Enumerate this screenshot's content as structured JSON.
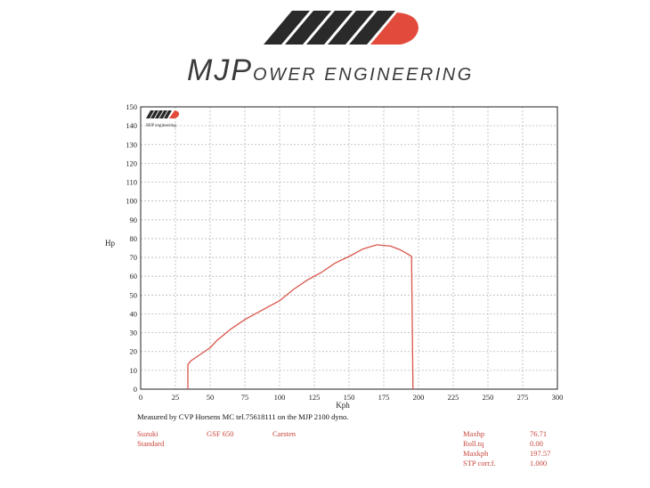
{
  "brand": {
    "name_big_1": "MJ",
    "name_big_2": "P",
    "name_rest": "OWER ENGINEERING",
    "mini_logo_text": "MJP engineering"
  },
  "colors": {
    "curve": "#d9564a",
    "grid": "#b8b8b8",
    "logo_dark": "#2a2a2a",
    "logo_red": "#e24a3b"
  },
  "chart_data": {
    "type": "line",
    "title": "",
    "xlabel": "Kph",
    "ylabel": "Hp",
    "xlim": [
      0,
      300
    ],
    "ylim": [
      0,
      150
    ],
    "x_ticks": [
      0,
      25,
      50,
      75,
      100,
      125,
      150,
      175,
      200,
      225,
      250,
      275,
      300
    ],
    "y_ticks": [
      0,
      10,
      20,
      30,
      40,
      50,
      60,
      70,
      80,
      90,
      100,
      110,
      120,
      130,
      140,
      150
    ],
    "grid": true,
    "series": [
      {
        "x": [
          34,
          34,
          36,
          42,
          50,
          55,
          65,
          75,
          90,
          100,
          110,
          120,
          130,
          140,
          150,
          160,
          170,
          180,
          187,
          193,
          195,
          196
        ],
        "y": [
          0,
          13,
          15,
          18,
          22,
          26,
          32,
          37,
          43,
          47,
          53,
          58,
          62,
          67,
          70.5,
          74.5,
          76.7,
          76,
          74,
          71.5,
          70.5,
          0
        ]
      }
    ]
  },
  "footer": {
    "measured_by": "Measured by CVP Horsens MC tel.75618111 on the MJP 2100 dyno.",
    "make": "Suzuki",
    "model": "GSF 650",
    "operator": "Carsten",
    "config": "Standard",
    "stats": [
      {
        "label": "Maxhp",
        "value": "76.71"
      },
      {
        "label": "Roll.tq",
        "value": "0.00"
      },
      {
        "label": "Maxkph",
        "value": "197.57"
      },
      {
        "label": "STP corr.f.",
        "value": "1.000"
      }
    ]
  }
}
